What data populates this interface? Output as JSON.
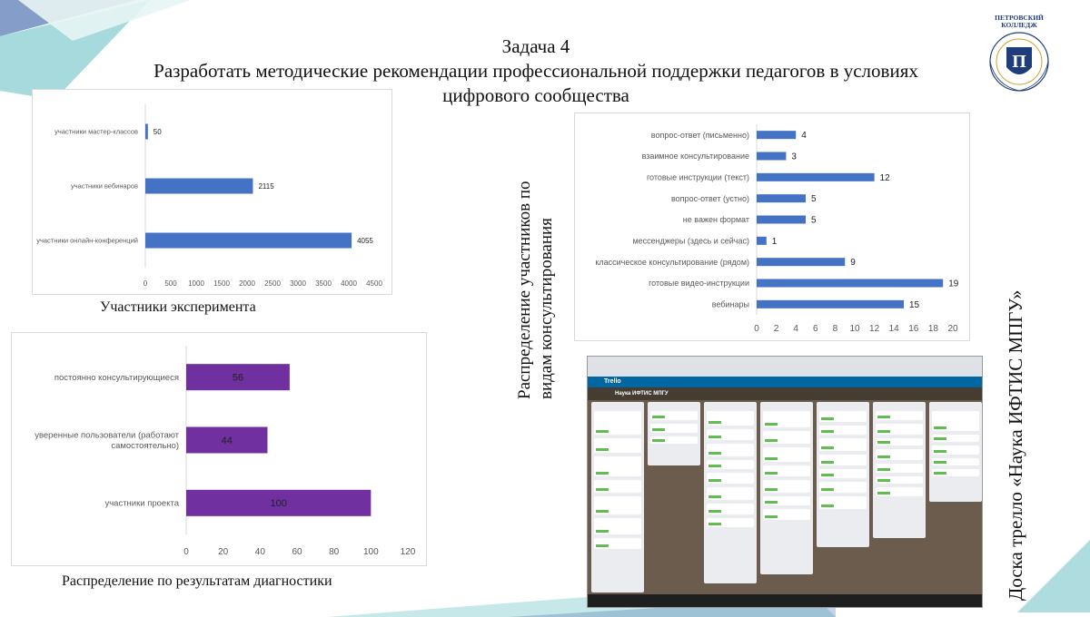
{
  "title": {
    "line1": "Задача 4",
    "line2": "Разработать методические рекомендации профессиональной поддержки педагогов в условиях",
    "line3": "цифрового сообщества"
  },
  "logo": {
    "name": "ПЕТРОВСКИЙ КОЛЛЕДЖ",
    "ring_text": "LEARNING BY DOING"
  },
  "captions": {
    "chart1": "Участники эксперимента",
    "chart2_vertical": [
      "Распределение участников по",
      "видам консультирования"
    ],
    "chart3": "Распределение по результатам диагностики",
    "trello_vertical": "Доска трелло «Наука ИФТИС МПГУ»"
  },
  "colors": {
    "blue_bar": "#4472c4",
    "purple_bar": "#7030a0",
    "deco_teal": "#5fbcc0",
    "deco_blue": "#1f4e9c"
  },
  "chart_data": [
    {
      "type": "bar",
      "orientation": "horizontal",
      "categories": [
        "участники мастер-классов",
        "участники вебинаров",
        "участники онлайн-конференций"
      ],
      "values": [
        50,
        2115,
        4055
      ],
      "xlim": [
        0,
        4500
      ],
      "xticks": [
        0,
        500,
        1000,
        1500,
        2000,
        2500,
        3000,
        3500,
        4000,
        4500
      ],
      "grid": false,
      "data_labels": true
    },
    {
      "type": "bar",
      "orientation": "horizontal",
      "categories": [
        "вопрос-ответ (письменно)",
        "взаимное консультирование",
        "готовые инструкции (текст)",
        "вопрос-ответ (устно)",
        "не важен формат",
        "мессенджеры (здесь и сейчас)",
        "классическое консультирование (рядом)",
        "готовые видео-инструкции",
        "вебинары"
      ],
      "values": [
        4,
        3,
        12,
        5,
        5,
        1,
        9,
        19,
        15
      ],
      "xlim": [
        0,
        20
      ],
      "xticks": [
        0,
        2,
        4,
        6,
        8,
        10,
        12,
        14,
        16,
        18,
        20
      ],
      "grid": false,
      "data_labels": true
    },
    {
      "type": "bar",
      "orientation": "horizontal",
      "categories": [
        "постоянно консультирующиеся",
        "уверенные пользователи (работают самостоятельно)",
        "участники проекта"
      ],
      "category_lines": [
        [
          "постоянно консультирующиеся"
        ],
        [
          "уверенные пользователи (работают",
          "самостоятельно)"
        ],
        [
          "участники проекта"
        ]
      ],
      "values": [
        56,
        44,
        100
      ],
      "xlim": [
        0,
        120
      ],
      "xticks": [
        0,
        20,
        40,
        60,
        80,
        100,
        120
      ],
      "grid": false,
      "data_labels": true
    }
  ],
  "trello": {
    "app_name": "Trello",
    "board_name": "Наука ИФТИС МПГУ",
    "columns": 7
  }
}
